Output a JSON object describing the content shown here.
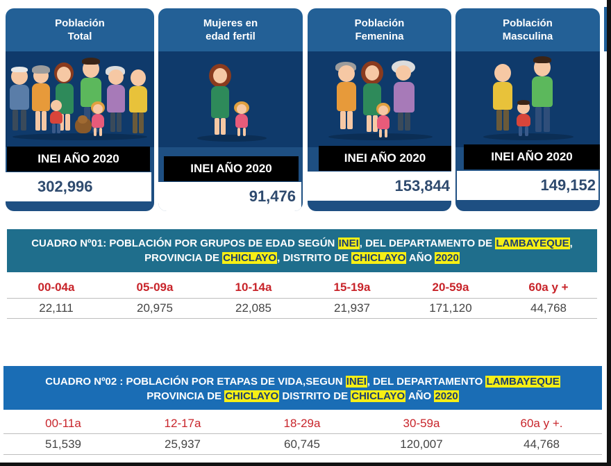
{
  "cards": [
    {
      "title_line1": "Población",
      "title_line2": "Total",
      "label": "INEI  AÑO 2020",
      "value": "302,996"
    },
    {
      "title_line1": "Mujeres en",
      "title_line2": "edad fertil",
      "label": "INEI AÑO 2020",
      "value": "91,476"
    },
    {
      "title_line1": "Población",
      "title_line2": "Femenina",
      "label": "INEI AÑO 2020",
      "value": "153,844"
    },
    {
      "title_line1": "Población",
      "title_line2": "Masculina",
      "label": "INEI AÑO 2020",
      "value": "149,152"
    }
  ],
  "table1": {
    "title_parts": {
      "p1": "CUADRO  Nº01: POBLACIÓN POR GRUPOS DE EDAD SEGÚN ",
      "h1": "INEI",
      "p2": ", DEL DEPARTAMENTO DE ",
      "h2": "LAMBAYEQUE",
      "p3": ",",
      "p4": "PROVINCIA DE ",
      "h3": "CHICLAYO",
      "p5": ", DISTRITO DE ",
      "h4": "CHICLAYO",
      "p6": " AÑO ",
      "h5": "2020"
    },
    "header_color": "#1f6e8c",
    "categories": [
      "00-04a",
      "05-09a",
      "10-14a",
      "15-19a",
      "20-59a",
      "60a y +"
    ],
    "values": [
      "22,111",
      "20,975",
      "22,085",
      "21,937",
      "171,120",
      "44,768"
    ]
  },
  "table2": {
    "title_parts": {
      "p1": "CUADRO Nº02 : POBLACIÓN POR ETAPAS DE VIDA,SEGUN ",
      "h1": "INEI",
      "p2": ", DEL DEPARTAMENTO ",
      "h2": "LAMBAYEQUE",
      "p4": "PROVINCIA  DE ",
      "h3": "CHICLAYO",
      "p5": " DISTRITO DE ",
      "h4": "CHICLAYO",
      "p6": " AÑO ",
      "h5": "2020"
    },
    "header_color": "#1a6db5",
    "categories": [
      "00-11a",
      "12-17a",
      "18-29a",
      "30-59a",
      "60a y +."
    ],
    "values": [
      "51,539",
      "25,937",
      "60,745",
      "120,007",
      "44,768"
    ]
  }
}
